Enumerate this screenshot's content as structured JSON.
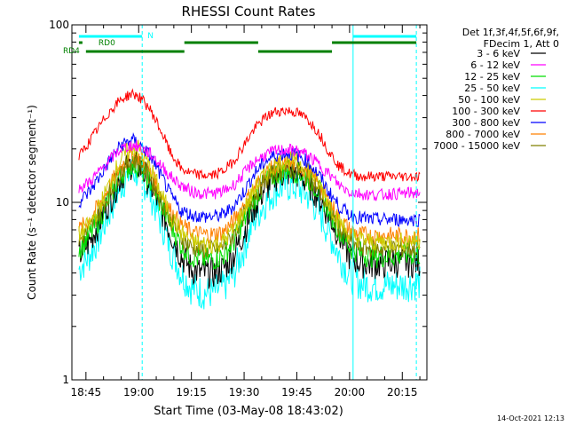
{
  "chart_data": {
    "type": "line",
    "title": "RHESSI Count Rates",
    "xlabel": "Start Time (03-May-08 18:43:02)",
    "ylabel": "Count Rate (s⁻¹ detector segment⁻¹)",
    "yscale": "log",
    "ylim": [
      1,
      100
    ],
    "x_time_range": [
      "18:41",
      "20:22"
    ],
    "x_ticks": [
      "18:45",
      "19:00",
      "19:15",
      "19:30",
      "19:45",
      "20:00",
      "20:15"
    ],
    "y_ticks": [
      "1",
      "10",
      "100"
    ],
    "grid": false,
    "legend_position": "right",
    "legend_header": [
      "Det 1f,3f,4f,5f,6f,9f,",
      "FDecim 1, Att 0"
    ],
    "timestamp": "14-Oct-2021 12:13",
    "x": [
      "18:43",
      "18:46",
      "18:49",
      "18:52",
      "18:55",
      "18:58",
      "19:00",
      "19:03",
      "19:06",
      "19:09",
      "19:12",
      "19:15",
      "19:18",
      "19:21",
      "19:24",
      "19:27",
      "19:30",
      "19:33",
      "19:36",
      "19:39",
      "19:42",
      "19:45",
      "19:48",
      "19:51",
      "19:54",
      "19:57",
      "20:00",
      "20:03",
      "20:06",
      "20:09",
      "20:12",
      "20:15",
      "20:18",
      "20:20"
    ],
    "series": [
      {
        "name": "3 - 6 keV",
        "color": "#000000",
        "values": [
          5.0,
          6.0,
          7.8,
          10.5,
          14.0,
          16.5,
          16.0,
          13.0,
          9.5,
          6.8,
          5.0,
          4.2,
          4.0,
          4.0,
          4.2,
          5.0,
          6.8,
          9.5,
          12.0,
          14.0,
          14.8,
          14.5,
          13.0,
          11.0,
          8.5,
          6.5,
          5.0,
          4.6,
          4.5,
          4.5,
          4.6,
          4.6,
          4.6,
          4.6
        ]
      },
      {
        "name": "6 - 12 keV",
        "color": "#ff00ff",
        "values": [
          12.0,
          13.0,
          15.0,
          17.5,
          20.0,
          21.0,
          20.5,
          19.0,
          16.5,
          14.0,
          12.5,
          11.5,
          11.2,
          11.2,
          11.5,
          12.5,
          14.5,
          17.0,
          18.5,
          19.5,
          19.8,
          19.5,
          18.5,
          16.5,
          14.5,
          12.5,
          11.5,
          11.2,
          11.0,
          11.0,
          11.2,
          11.2,
          11.3,
          11.3
        ]
      },
      {
        "name": "12 - 25 keV",
        "color": "#00dd00",
        "values": [
          5.5,
          6.5,
          8.2,
          11.0,
          14.5,
          16.5,
          16.0,
          13.5,
          10.0,
          7.5,
          5.8,
          5.0,
          4.8,
          4.8,
          5.0,
          6.0,
          7.8,
          10.5,
          12.8,
          14.5,
          15.2,
          15.0,
          13.8,
          11.8,
          9.2,
          7.0,
          5.6,
          5.2,
          5.0,
          5.0,
          5.0,
          5.1,
          5.1,
          5.1
        ]
      },
      {
        "name": "25 - 50 keV",
        "color": "#00ffff",
        "values": [
          4.2,
          5.0,
          6.5,
          9.0,
          12.5,
          15.0,
          14.5,
          11.5,
          8.0,
          5.5,
          4.0,
          3.3,
          3.1,
          3.1,
          3.3,
          3.9,
          5.5,
          8.0,
          10.0,
          11.8,
          12.5,
          12.2,
          11.0,
          9.0,
          6.8,
          5.0,
          3.9,
          3.5,
          3.4,
          3.4,
          3.4,
          3.4,
          3.5,
          3.5
        ]
      },
      {
        "name": "50 - 100 keV",
        "color": "#cccc00",
        "values": [
          6.5,
          7.5,
          9.5,
          13.0,
          17.5,
          20.5,
          20.0,
          16.0,
          11.5,
          8.5,
          6.8,
          6.0,
          5.8,
          5.8,
          6.0,
          7.0,
          9.0,
          11.8,
          14.5,
          16.5,
          17.2,
          17.0,
          15.5,
          13.0,
          10.0,
          7.8,
          6.5,
          6.2,
          6.0,
          6.0,
          6.0,
          6.0,
          6.1,
          6.1
        ]
      },
      {
        "name": "100 - 300 keV",
        "color": "#ff0000",
        "values": [
          18.0,
          22.0,
          27.0,
          33.0,
          38.0,
          41.0,
          39.5,
          34.0,
          26.0,
          19.0,
          15.5,
          14.5,
          14.2,
          14.2,
          15.0,
          17.0,
          21.0,
          26.0,
          30.0,
          32.5,
          33.0,
          32.0,
          29.5,
          25.0,
          19.5,
          16.0,
          14.5,
          14.0,
          14.0,
          14.0,
          14.0,
          14.0,
          14.0,
          14.0
        ]
      },
      {
        "name": "300 - 800 keV",
        "color": "#0000ff",
        "values": [
          10.0,
          11.5,
          14.0,
          17.5,
          21.0,
          22.5,
          21.5,
          18.5,
          14.5,
          11.0,
          9.0,
          8.5,
          8.3,
          8.3,
          8.5,
          9.5,
          11.5,
          14.5,
          17.0,
          18.5,
          19.0,
          18.5,
          17.0,
          14.5,
          11.5,
          9.5,
          8.5,
          8.2,
          8.0,
          8.0,
          8.0,
          8.0,
          8.0,
          8.0
        ]
      },
      {
        "name": "800 - 7000 keV",
        "color": "#ff8000",
        "values": [
          7.0,
          8.0,
          9.8,
          12.5,
          16.0,
          18.5,
          18.0,
          15.0,
          11.5,
          9.0,
          7.5,
          6.8,
          6.6,
          6.6,
          6.8,
          7.8,
          9.8,
          12.2,
          14.5,
          16.0,
          16.5,
          16.2,
          15.0,
          12.8,
          10.2,
          8.2,
          7.0,
          6.6,
          6.5,
          6.5,
          6.5,
          6.5,
          6.5,
          6.5
        ]
      },
      {
        "name": "7000 - 15000 keV",
        "color": "#808000",
        "values": [
          6.0,
          7.0,
          8.8,
          11.5,
          15.0,
          17.2,
          16.8,
          14.0,
          10.5,
          8.0,
          6.3,
          5.6,
          5.4,
          5.4,
          5.6,
          6.5,
          8.5,
          11.0,
          13.2,
          14.8,
          15.4,
          15.1,
          14.0,
          11.8,
          9.3,
          7.2,
          6.0,
          5.6,
          5.5,
          5.5,
          5.5,
          5.5,
          5.5,
          5.5
        ]
      }
    ],
    "annotations": {
      "flags": [
        {
          "label": "N",
          "color": "#00ffff",
          "intervals": [
            [
              "18:43",
              "19:01"
            ],
            [
              "20:01",
              "20:19"
            ]
          ]
        },
        {
          "label": "RD0",
          "color": "#008000",
          "intervals": [
            [
              "18:43",
              "18:44"
            ],
            [
              "19:13",
              "19:34"
            ],
            [
              "19:55",
              "20:19"
            ]
          ]
        },
        {
          "label": "RD4",
          "color": "#008000",
          "intervals": [
            [
              "18:45",
              "19:13"
            ],
            [
              "19:34",
              "19:55"
            ]
          ]
        }
      ],
      "vertical_lines": [
        {
          "time": "19:01",
          "style": "dashed",
          "color": "#00ffff"
        },
        {
          "time": "20:01",
          "style": "solid",
          "color": "#00ffff"
        },
        {
          "time": "20:19",
          "style": "dashed",
          "color": "#00ffff"
        }
      ]
    }
  }
}
